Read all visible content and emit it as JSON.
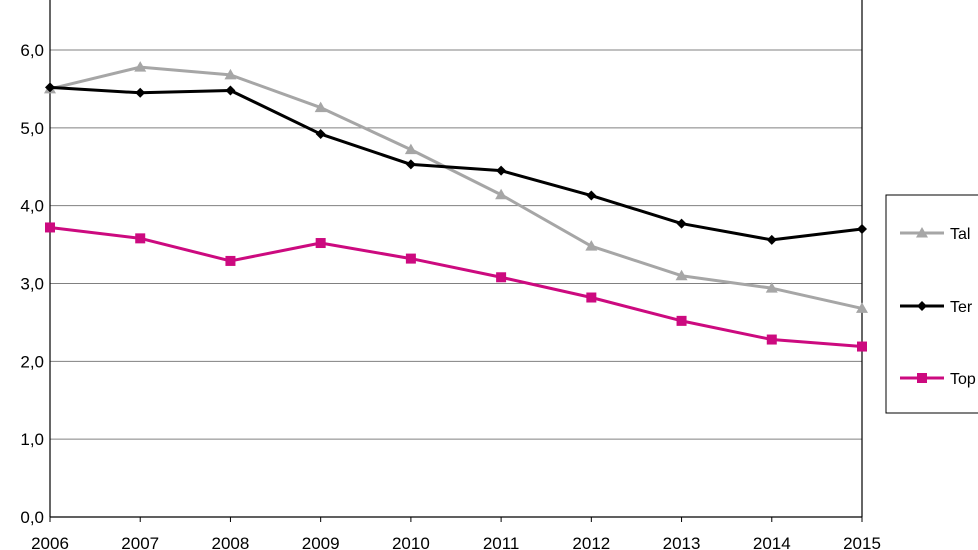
{
  "chart_data": {
    "type": "line",
    "title": "",
    "xlabel": "",
    "ylabel": "",
    "x": [
      "2006",
      "2007",
      "2008",
      "2009",
      "2010",
      "2011",
      "2012",
      "2013",
      "2014",
      "2015"
    ],
    "ylim": [
      0,
      6.0
    ],
    "yticks": [
      "0,0",
      "1,0",
      "2,0",
      "3,0",
      "4,0",
      "5,0",
      "6,0"
    ],
    "grid": true,
    "legend_placement": "right",
    "series": [
      {
        "name": "Tal",
        "color": "#a6a6a6",
        "marker": "triangle",
        "values": [
          5.5,
          5.78,
          5.68,
          5.26,
          4.72,
          4.14,
          3.48,
          3.1,
          2.94,
          2.68
        ]
      },
      {
        "name": "Ter",
        "color": "#000000",
        "marker": "diamond",
        "values": [
          5.52,
          5.45,
          5.48,
          4.92,
          4.53,
          4.45,
          4.13,
          3.77,
          3.56,
          3.7
        ]
      },
      {
        "name": "Top",
        "color": "#cc0a7f",
        "marker": "square",
        "values": [
          3.72,
          3.58,
          3.29,
          3.52,
          3.32,
          3.08,
          2.82,
          2.52,
          2.28,
          2.19
        ]
      }
    ]
  }
}
